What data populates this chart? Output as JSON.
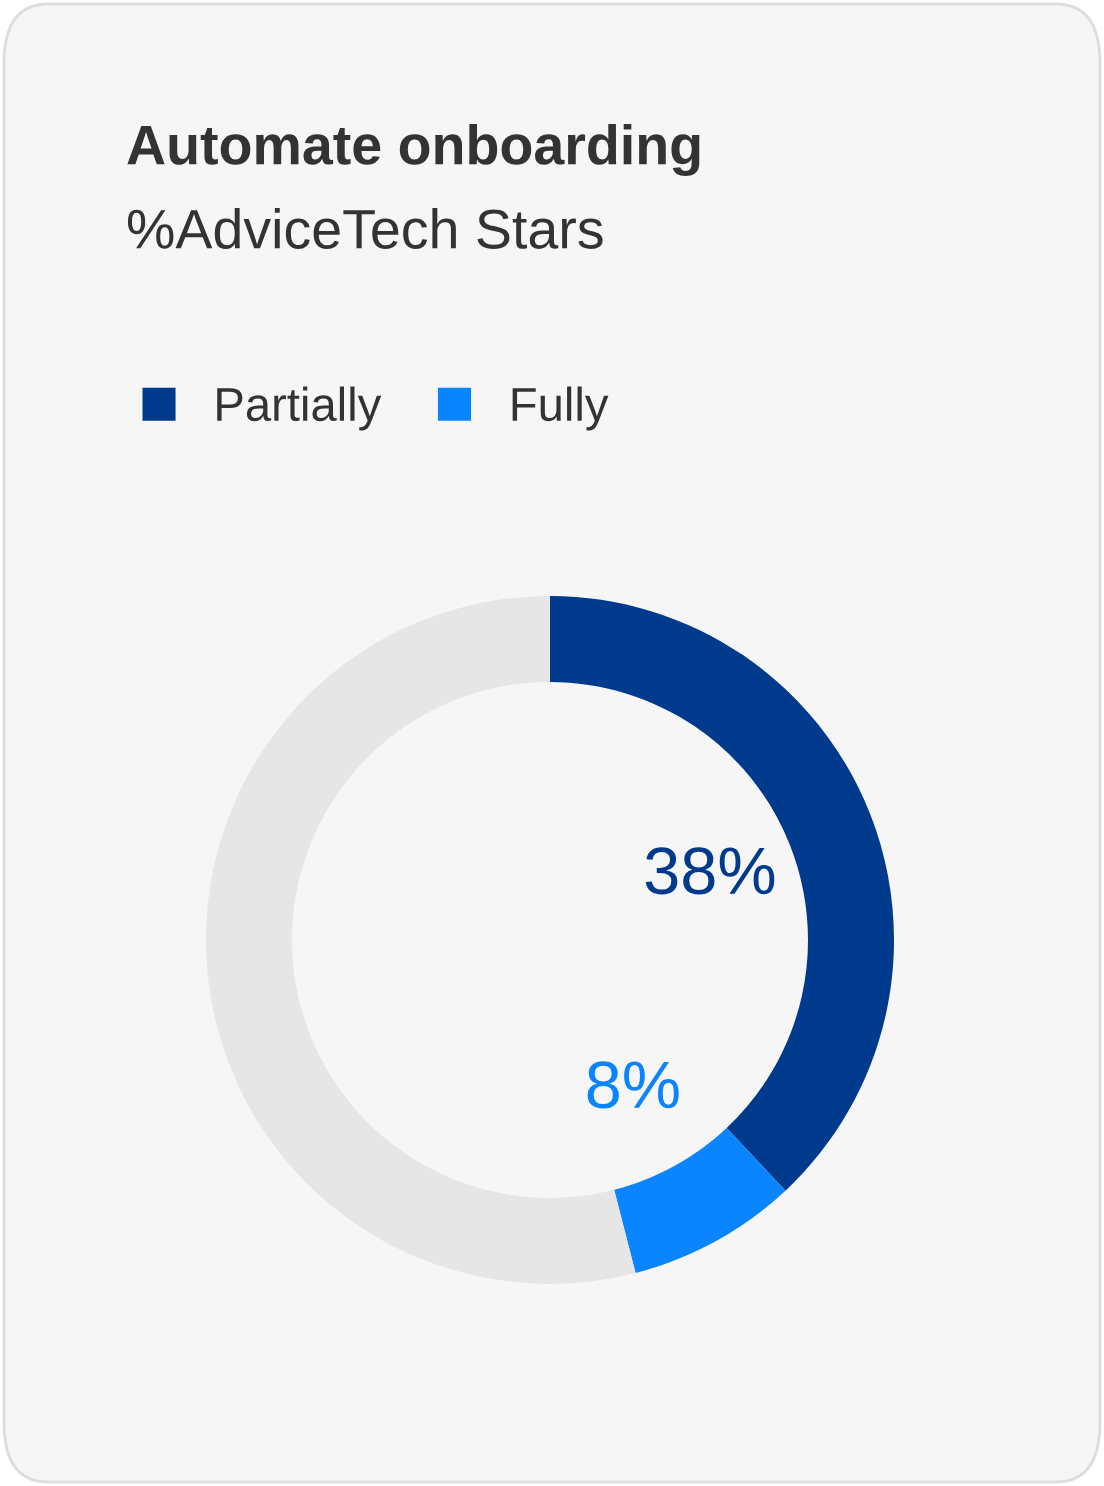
{
  "chart_data": {
    "type": "donut",
    "title": "Automate onboarding",
    "subtitle": "%AdviceTech Stars",
    "categories": [
      "Partially",
      "Fully",
      null
    ],
    "values": [
      38,
      8,
      54
    ],
    "colors": [
      "#003a8c",
      "#0a84ff",
      "#e6e6e6"
    ],
    "value_labels": [
      "38%",
      "8%",
      null
    ],
    "legend": "top left"
  }
}
